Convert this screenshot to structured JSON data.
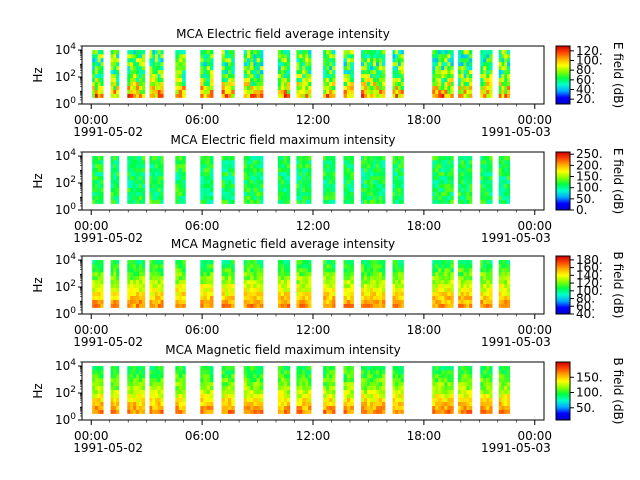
{
  "chart_data": [
    {
      "type": "heatmap",
      "title": "MCA  Electric field average intensity",
      "ylabel": "Hz",
      "ytick_labels": [
        "10^0",
        "10^2",
        "10^4"
      ],
      "y_scale": "log",
      "ylim": [
        1,
        20000
      ],
      "x_tick_labels": [
        "00:00",
        "06:00",
        "12:00",
        "18:00",
        "00:00"
      ],
      "x_date_left": "1991-05-02",
      "x_date_right": "1991-05-03",
      "xlim_hours": [
        -0.5,
        24.5
      ],
      "colorbar": {
        "label": "E field (dB)",
        "ticks": [
          20,
          40,
          60,
          80,
          100,
          120
        ],
        "range": [
          10,
          130
        ],
        "tick_suffix": "."
      },
      "segments": [
        [
          0.05,
          0.65
        ],
        [
          1.05,
          1.5
        ],
        [
          1.95,
          2.9
        ],
        [
          3.15,
          3.9
        ],
        [
          4.55,
          5.1
        ],
        [
          5.9,
          6.6
        ],
        [
          7.05,
          7.75
        ],
        [
          8.25,
          9.3
        ],
        [
          10.1,
          10.75
        ],
        [
          11.1,
          11.9
        ],
        [
          12.55,
          13.2
        ],
        [
          13.65,
          14.2
        ],
        [
          14.6,
          15.9
        ],
        [
          16.3,
          16.9
        ],
        [
          18.45,
          19.6
        ],
        [
          19.85,
          20.6
        ],
        [
          21.05,
          21.7
        ],
        [
          22.05,
          22.65
        ]
      ],
      "intensity_profile": {
        "low_freq": 100,
        "mid_freq": 65,
        "high_freq": 65,
        "variability": 25
      }
    },
    {
      "type": "heatmap",
      "title": "MCA  Electric field maximum intensity",
      "ylabel": "Hz",
      "ytick_labels": [
        "10^0",
        "10^2",
        "10^4"
      ],
      "y_scale": "log",
      "ylim": [
        1,
        20000
      ],
      "x_tick_labels": [
        "00:00",
        "06:00",
        "12:00",
        "18:00",
        "00:00"
      ],
      "x_date_left": "1991-05-02",
      "x_date_right": "1991-05-03",
      "xlim_hours": [
        -0.5,
        24.5
      ],
      "colorbar": {
        "label": "E field (dB)",
        "ticks": [
          0,
          50,
          100,
          150,
          200,
          250
        ],
        "range": [
          0,
          260
        ],
        "tick_suffix": "."
      },
      "segments": [
        [
          0.05,
          0.65
        ],
        [
          1.05,
          1.5
        ],
        [
          1.95,
          2.9
        ],
        [
          3.15,
          3.9
        ],
        [
          4.55,
          5.1
        ],
        [
          5.9,
          6.6
        ],
        [
          7.05,
          7.75
        ],
        [
          8.25,
          9.3
        ],
        [
          10.1,
          10.75
        ],
        [
          11.1,
          11.9
        ],
        [
          12.55,
          13.2
        ],
        [
          13.65,
          14.2
        ],
        [
          14.6,
          15.9
        ],
        [
          16.3,
          16.9
        ],
        [
          18.45,
          19.6
        ],
        [
          19.85,
          20.6
        ],
        [
          21.05,
          21.7
        ],
        [
          22.05,
          22.65
        ]
      ],
      "intensity_profile": {
        "low_freq": 115,
        "mid_freq": 110,
        "high_freq": 115,
        "variability": 25
      }
    },
    {
      "type": "heatmap",
      "title": "MCA  Magnetic field average intensity",
      "ylabel": "Hz",
      "ytick_labels": [
        "10^0",
        "10^2",
        "10^4"
      ],
      "y_scale": "log",
      "ylim": [
        1,
        20000
      ],
      "x_tick_labels": [
        "00:00",
        "06:00",
        "12:00",
        "18:00",
        "00:00"
      ],
      "x_date_left": "1991-05-02",
      "x_date_right": "1991-05-03",
      "xlim_hours": [
        -0.5,
        24.5
      ],
      "colorbar": {
        "label": "B field (dB)",
        "ticks": [
          40,
          60,
          80,
          100,
          120,
          140,
          160,
          180
        ],
        "range": [
          40,
          190
        ],
        "tick_suffix": "."
      },
      "segments": [
        [
          0.05,
          0.65
        ],
        [
          1.05,
          1.5
        ],
        [
          1.95,
          2.9
        ],
        [
          3.15,
          3.9
        ],
        [
          4.55,
          5.1
        ],
        [
          5.9,
          6.6
        ],
        [
          7.05,
          7.75
        ],
        [
          8.25,
          9.3
        ],
        [
          10.1,
          10.75
        ],
        [
          11.1,
          11.9
        ],
        [
          12.55,
          13.2
        ],
        [
          13.65,
          14.2
        ],
        [
          14.6,
          15.9
        ],
        [
          16.3,
          16.9
        ],
        [
          18.45,
          19.6
        ],
        [
          19.85,
          20.6
        ],
        [
          21.05,
          21.7
        ],
        [
          22.05,
          22.65
        ]
      ],
      "intensity_profile": {
        "low_freq": 160,
        "mid_freq": 130,
        "high_freq": 105,
        "variability": 12
      }
    },
    {
      "type": "heatmap",
      "title": "MCA  Magnetic field maximum intensity",
      "ylabel": "Hz",
      "ytick_labels": [
        "10^0",
        "10^2",
        "10^4"
      ],
      "y_scale": "log",
      "ylim": [
        1,
        20000
      ],
      "x_tick_labels": [
        "00:00",
        "06:00",
        "12:00",
        "18:00",
        "00:00"
      ],
      "x_date_left": "1991-05-02",
      "x_date_right": "1991-05-03",
      "xlim_hours": [
        -0.5,
        24.5
      ],
      "colorbar": {
        "label": "B field (dB)",
        "ticks": [
          50,
          100,
          150
        ],
        "range": [
          10,
          200
        ],
        "tick_suffix": "."
      },
      "segments": [
        [
          0.05,
          0.65
        ],
        [
          1.05,
          1.5
        ],
        [
          1.95,
          2.9
        ],
        [
          3.15,
          3.9
        ],
        [
          4.55,
          5.1
        ],
        [
          5.9,
          6.6
        ],
        [
          7.05,
          7.75
        ],
        [
          8.25,
          9.3
        ],
        [
          10.1,
          10.75
        ],
        [
          11.1,
          11.9
        ],
        [
          12.55,
          13.2
        ],
        [
          13.65,
          14.2
        ],
        [
          14.6,
          15.9
        ],
        [
          16.3,
          16.9
        ],
        [
          18.45,
          19.6
        ],
        [
          19.85,
          20.6
        ],
        [
          21.05,
          21.7
        ],
        [
          22.05,
          22.65
        ]
      ],
      "intensity_profile": {
        "low_freq": 165,
        "mid_freq": 120,
        "high_freq": 95,
        "variability": 15
      }
    }
  ],
  "colors": {
    "colormap": [
      "#0000cc",
      "#0000ff",
      "#00aaff",
      "#00ffcc",
      "#00ff44",
      "#88ff00",
      "#ffff00",
      "#ffaa00",
      "#ff4400",
      "#cc0000"
    ]
  }
}
